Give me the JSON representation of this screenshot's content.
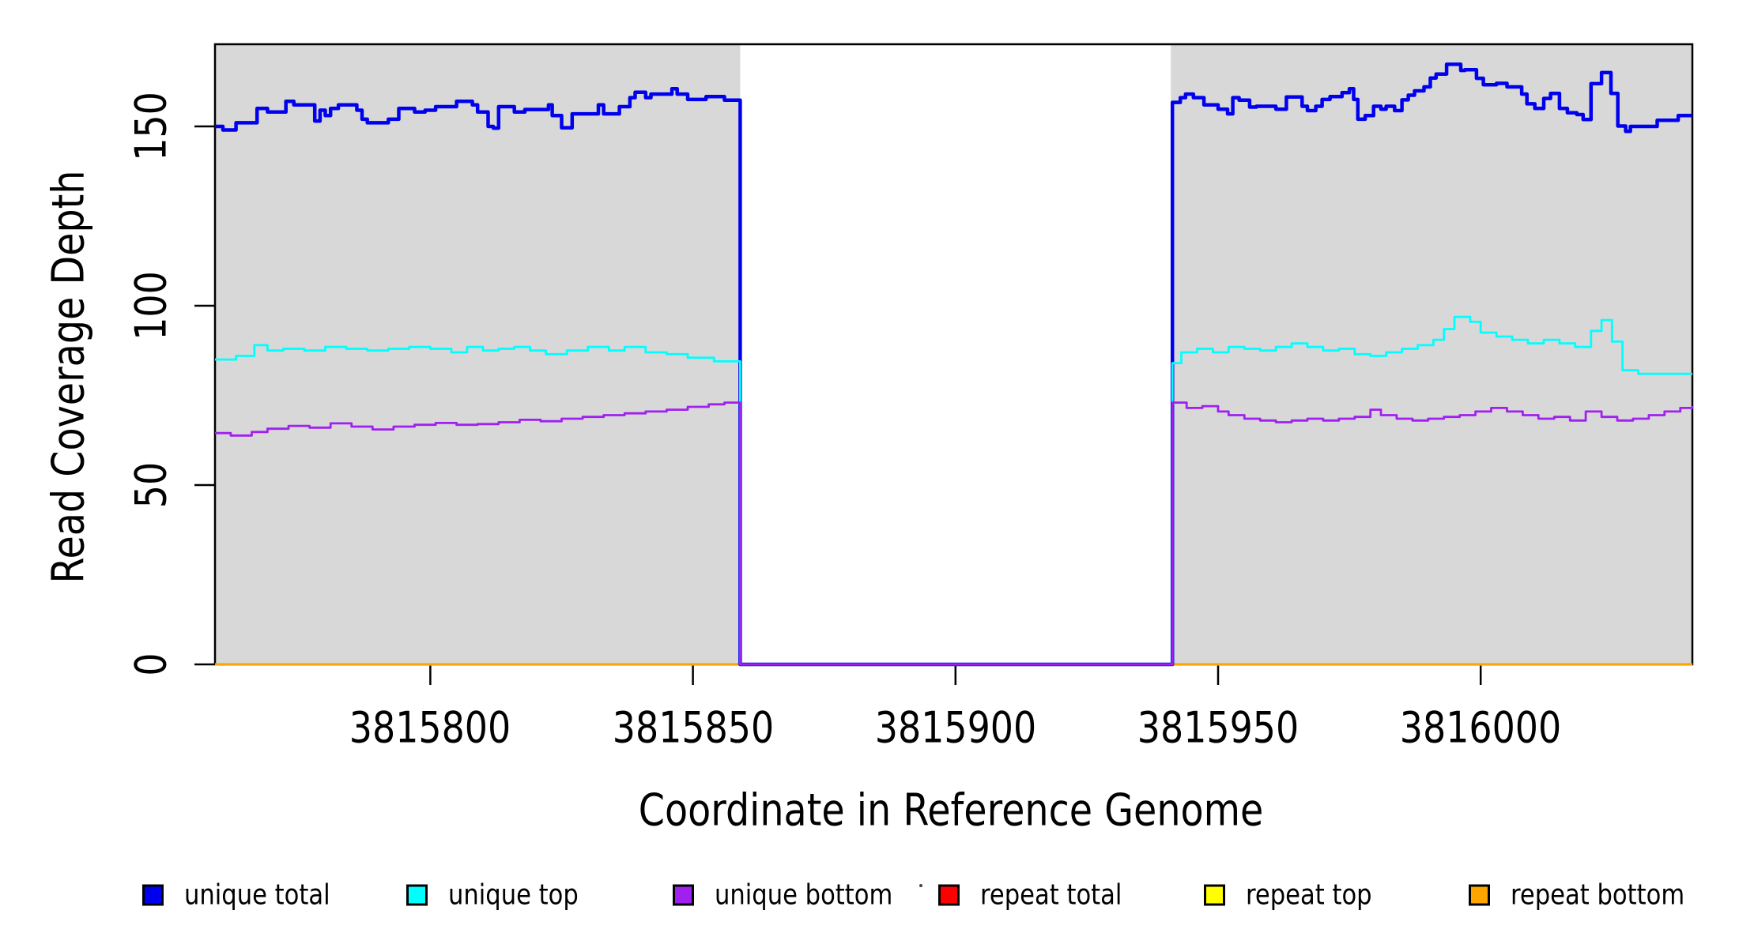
{
  "chart_data": {
    "type": "line",
    "subtype": "step-coverage-plot",
    "x_title": "Coordinate in Reference Genome",
    "y_title": "Read Coverage Depth",
    "x_domain": [
      3815759,
      3816040.3
    ],
    "y_domain": [
      0,
      172.9
    ],
    "x_ticks": [
      3815800,
      3815850,
      3815900,
      3815950,
      3816000
    ],
    "x_tick_labels": [
      "3815800",
      "3815850",
      "3815900",
      "3815950",
      "3816000"
    ],
    "y_ticks": [
      0,
      50,
      100,
      150
    ],
    "y_tick_labels": [
      "0",
      "50",
      "100",
      "150"
    ],
    "grid": false,
    "shaded_regions": [
      [
        3815759,
        3815859
      ],
      [
        3815941,
        3816040.3
      ]
    ],
    "gap_region": [
      3815859,
      3815941
    ],
    "colors": {
      "shaded": "#d8d8d8",
      "axis": "#000000",
      "background": "#ffffff"
    },
    "series": [
      {
        "name": "repeat total",
        "color": "#ff0000",
        "width": 3,
        "points": [
          [
            3815759,
            0
          ],
          [
            3816040.3,
            0
          ]
        ]
      },
      {
        "name": "repeat top",
        "color": "#ffff00",
        "width": 3,
        "points": [
          [
            3815759,
            0
          ],
          [
            3816040.3,
            0
          ]
        ]
      },
      {
        "name": "repeat bottom",
        "color": "#ffa500",
        "width": 3.2,
        "points": [
          [
            3815759,
            0
          ],
          [
            3816040.3,
            0
          ]
        ]
      },
      {
        "name": "unique total",
        "color": "#0000ee",
        "width": 4.5,
        "points": [
          [
            3815759,
            150
          ],
          [
            3815760.5,
            149
          ],
          [
            3815763,
            151
          ],
          [
            3815767,
            155
          ],
          [
            3815769,
            154
          ],
          [
            3815772.5,
            157
          ],
          [
            3815774,
            156
          ],
          [
            3815778,
            151.5
          ],
          [
            3815779,
            154.5
          ],
          [
            3815780,
            153
          ],
          [
            3815781,
            155
          ],
          [
            3815782.5,
            156
          ],
          [
            3815786,
            154.5
          ],
          [
            3815787,
            152
          ],
          [
            3815788,
            151
          ],
          [
            3815792,
            152
          ],
          [
            3815794,
            155
          ],
          [
            3815797,
            154
          ],
          [
            3815799,
            154.5
          ],
          [
            3815801,
            155.5
          ],
          [
            3815805,
            157
          ],
          [
            3815808,
            156
          ],
          [
            3815809,
            154
          ],
          [
            3815811,
            150
          ],
          [
            3815812,
            149.5
          ],
          [
            3815813,
            155.5
          ],
          [
            3815816,
            154
          ],
          [
            3815818,
            154.7
          ],
          [
            3815822.5,
            156
          ],
          [
            3815823.2,
            153
          ],
          [
            3815825,
            149.6
          ],
          [
            3815827,
            153.5
          ],
          [
            3815832,
            156
          ],
          [
            3815833,
            153.5
          ],
          [
            3815836,
            155.5
          ],
          [
            3815838,
            158
          ],
          [
            3815839,
            159.5
          ],
          [
            3815841,
            158
          ],
          [
            3815842,
            159
          ],
          [
            3815846,
            160.5
          ],
          [
            3815847,
            159
          ],
          [
            3815849,
            157.5
          ],
          [
            3815852.5,
            158.3
          ],
          [
            3815856,
            157.3
          ],
          [
            3815859,
            0
          ],
          [
            3815941.3,
            156.7
          ],
          [
            3815942.8,
            158
          ],
          [
            3815943.8,
            159
          ],
          [
            3815945.3,
            158
          ],
          [
            3815947.3,
            156
          ],
          [
            3815950,
            154.8
          ],
          [
            3815951.8,
            153.5
          ],
          [
            3815952.8,
            158
          ],
          [
            3815954,
            157.3
          ],
          [
            3815956,
            155.4
          ],
          [
            3815957.3,
            155.6
          ],
          [
            3815961,
            154.8
          ],
          [
            3815963,
            158.2
          ],
          [
            3815966,
            155.6
          ],
          [
            3815967,
            154.4
          ],
          [
            3815968.6,
            155.6
          ],
          [
            3815969.8,
            157.5
          ],
          [
            3815971.3,
            158.3
          ],
          [
            3815973.6,
            159.4
          ],
          [
            3815975,
            160.5
          ],
          [
            3815975.8,
            157.5
          ],
          [
            3815976.6,
            152
          ],
          [
            3815978,
            153
          ],
          [
            3815979.6,
            155.6
          ],
          [
            3815981,
            154.8
          ],
          [
            3815982,
            155.6
          ],
          [
            3815983.6,
            154.4
          ],
          [
            3815985,
            157.4
          ],
          [
            3815986.2,
            158.7
          ],
          [
            3815987.4,
            159.9
          ],
          [
            3815989.2,
            161
          ],
          [
            3815990.4,
            163.5
          ],
          [
            3815991.5,
            164.6
          ],
          [
            3815993.5,
            167.3
          ],
          [
            3815996.2,
            165.6
          ],
          [
            3815997,
            165.8
          ],
          [
            3815999.2,
            163.4
          ],
          [
            3816000.5,
            161.6
          ],
          [
            3816003,
            162
          ],
          [
            3816005,
            161
          ],
          [
            3816007.8,
            159
          ],
          [
            3816008.8,
            156.3
          ],
          [
            3816010.3,
            155
          ],
          [
            3816012,
            157.8
          ],
          [
            3816013.3,
            159.2
          ],
          [
            3816015,
            155
          ],
          [
            3816016.5,
            153.8
          ],
          [
            3816018.3,
            153.3
          ],
          [
            3816019.5,
            151.9
          ],
          [
            3816021,
            161.9
          ],
          [
            3816023,
            165
          ],
          [
            3816024.8,
            159.2
          ],
          [
            3816026.1,
            150.1
          ],
          [
            3816027.6,
            148.6
          ],
          [
            3816028.5,
            150
          ],
          [
            3816033.6,
            151.7
          ],
          [
            3816037.6,
            153
          ],
          [
            3816040.3,
            153
          ]
        ]
      },
      {
        "name": "unique top",
        "color": "#00ffff",
        "width": 2.8,
        "points": [
          [
            3815759,
            85
          ],
          [
            3815763,
            86
          ],
          [
            3815766.5,
            89
          ],
          [
            3815769,
            87.5
          ],
          [
            3815772,
            88
          ],
          [
            3815776,
            87.5
          ],
          [
            3815780,
            88.5
          ],
          [
            3815784,
            88
          ],
          [
            3815788,
            87.5
          ],
          [
            3815792,
            88
          ],
          [
            3815796,
            88.5
          ],
          [
            3815800,
            88
          ],
          [
            3815804,
            87
          ],
          [
            3815807,
            88.5
          ],
          [
            3815810,
            87.5
          ],
          [
            3815813,
            88
          ],
          [
            3815816,
            88.5
          ],
          [
            3815819,
            87.5
          ],
          [
            3815822,
            86.5
          ],
          [
            3815826,
            87.5
          ],
          [
            3815830,
            88.5
          ],
          [
            3815834,
            87.5
          ],
          [
            3815837,
            88.5
          ],
          [
            3815841,
            87
          ],
          [
            3815845,
            86.5
          ],
          [
            3815849,
            85.5
          ],
          [
            3815854,
            84.5
          ],
          [
            3815859,
            0
          ],
          [
            3815941.3,
            84
          ],
          [
            3815943,
            87
          ],
          [
            3815946,
            88
          ],
          [
            3815949,
            87
          ],
          [
            3815952,
            88.5
          ],
          [
            3815955,
            88
          ],
          [
            3815958,
            87.5
          ],
          [
            3815961,
            88.5
          ],
          [
            3815964,
            89.5
          ],
          [
            3815967,
            88.5
          ],
          [
            3815970,
            87.5
          ],
          [
            3815973,
            88
          ],
          [
            3815976,
            86.5
          ],
          [
            3815979,
            86
          ],
          [
            3815982,
            87
          ],
          [
            3815985,
            88
          ],
          [
            3815988,
            89
          ],
          [
            3815991,
            90.5
          ],
          [
            3815993,
            93.5
          ],
          [
            3815995,
            96.9
          ],
          [
            3815998,
            95.5
          ],
          [
            3816000,
            92.5
          ],
          [
            3816003,
            91.4
          ],
          [
            3816006,
            90.5
          ],
          [
            3816009,
            89.5
          ],
          [
            3816012,
            90.5
          ],
          [
            3816015,
            89.5
          ],
          [
            3816018,
            88.5
          ],
          [
            3816021,
            93
          ],
          [
            3816023,
            96
          ],
          [
            3816025,
            90
          ],
          [
            3816027,
            82
          ],
          [
            3816030,
            81
          ],
          [
            3816040.3,
            81
          ]
        ]
      },
      {
        "name": "unique bottom",
        "color": "#a020f0",
        "width": 2.8,
        "points": [
          [
            3815759,
            64.5
          ],
          [
            3815762,
            63.8
          ],
          [
            3815766,
            64.8
          ],
          [
            3815769,
            65.7
          ],
          [
            3815773,
            66.5
          ],
          [
            3815777,
            66
          ],
          [
            3815781,
            67.2
          ],
          [
            3815785,
            66.3
          ],
          [
            3815789,
            65.5
          ],
          [
            3815793,
            66.3
          ],
          [
            3815797,
            66.8
          ],
          [
            3815801,
            67.3
          ],
          [
            3815805,
            66.8
          ],
          [
            3815809,
            67
          ],
          [
            3815813,
            67.5
          ],
          [
            3815817,
            68.2
          ],
          [
            3815821,
            67.8
          ],
          [
            3815825,
            68.5
          ],
          [
            3815829,
            69
          ],
          [
            3815833,
            69.5
          ],
          [
            3815837,
            70
          ],
          [
            3815841,
            70.5
          ],
          [
            3815845,
            71
          ],
          [
            3815849,
            71.8
          ],
          [
            3815853,
            72.5
          ],
          [
            3815856,
            73
          ],
          [
            3815859,
            0
          ],
          [
            3815941.3,
            73
          ],
          [
            3815944,
            71.5
          ],
          [
            3815947,
            72
          ],
          [
            3815950,
            70.5
          ],
          [
            3815952,
            69.5
          ],
          [
            3815955,
            68.5
          ],
          [
            3815958,
            68
          ],
          [
            3815961,
            67.5
          ],
          [
            3815964,
            68
          ],
          [
            3815967,
            68.5
          ],
          [
            3815970,
            68
          ],
          [
            3815973,
            68.5
          ],
          [
            3815976,
            69
          ],
          [
            3815979,
            71
          ],
          [
            3815981,
            69.5
          ],
          [
            3815984,
            68.5
          ],
          [
            3815987,
            68
          ],
          [
            3815990,
            68.5
          ],
          [
            3815993,
            69
          ],
          [
            3815996,
            69.5
          ],
          [
            3815999,
            70.5
          ],
          [
            3816002,
            71.5
          ],
          [
            3816005,
            70.5
          ],
          [
            3816008,
            69.5
          ],
          [
            3816011,
            68.5
          ],
          [
            3816014,
            69
          ],
          [
            3816017,
            68
          ],
          [
            3816020,
            70.5
          ],
          [
            3816023,
            69
          ],
          [
            3816026,
            68
          ],
          [
            3816029,
            68.5
          ],
          [
            3816032,
            69.5
          ],
          [
            3816035,
            70.5
          ],
          [
            3816038,
            71.5
          ],
          [
            3816040.3,
            72
          ]
        ]
      }
    ]
  },
  "legend": {
    "items": [
      {
        "label": "unique total",
        "color": "#0000ee"
      },
      {
        "label": "unique top",
        "color": "#00ffff"
      },
      {
        "label": "unique bottom",
        "color": "#a020f0"
      },
      {
        "label": "repeat total",
        "color": "#ff0000"
      },
      {
        "label": "repeat top",
        "color": "#ffff00"
      },
      {
        "label": "repeat bottom",
        "color": "#ffa500"
      }
    ],
    "stray_mark": "."
  }
}
